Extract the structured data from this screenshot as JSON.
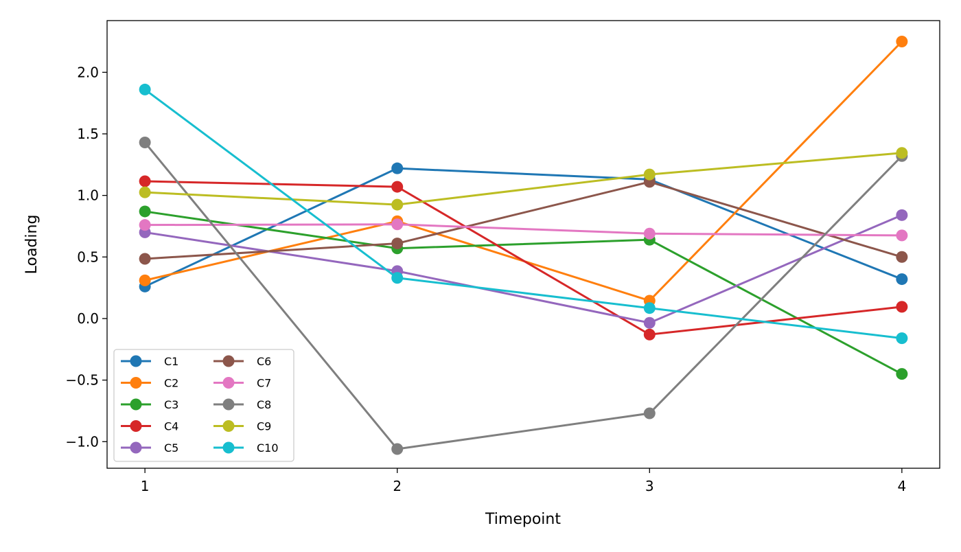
{
  "chart_data": {
    "type": "line",
    "title": "",
    "xlabel": "Timepoint",
    "ylabel": "Loading",
    "x": [
      1,
      2,
      3,
      4
    ],
    "xticks": [
      "1",
      "2",
      "3",
      "4"
    ],
    "yticks": [
      "−1.0",
      "−0.5",
      "0.0",
      "0.5",
      "1.0",
      "1.5",
      "2.0"
    ],
    "ytick_values": [
      -1.0,
      -0.5,
      0.0,
      0.5,
      1.0,
      1.5,
      2.0
    ],
    "xlim": [
      0.85,
      4.15
    ],
    "ylim": [
      -1.216,
      2.42
    ],
    "grid": false,
    "legend_placement": "lower-left",
    "series": [
      {
        "name": "C1",
        "color": "#1f77b4",
        "values": [
          0.26,
          1.22,
          1.13,
          0.32
        ]
      },
      {
        "name": "C2",
        "color": "#ff7f0e",
        "values": [
          0.31,
          0.79,
          0.145,
          2.25
        ]
      },
      {
        "name": "C3",
        "color": "#2ca02c",
        "values": [
          0.87,
          0.57,
          0.64,
          -0.45
        ]
      },
      {
        "name": "C4",
        "color": "#d62728",
        "values": [
          1.115,
          1.07,
          -0.13,
          0.095
        ]
      },
      {
        "name": "C5",
        "color": "#9467bd",
        "values": [
          0.7,
          0.385,
          -0.035,
          0.84
        ]
      },
      {
        "name": "C6",
        "color": "#8c564b",
        "values": [
          0.485,
          0.61,
          1.11,
          0.5
        ]
      },
      {
        "name": "C7",
        "color": "#e377c2",
        "values": [
          0.76,
          0.765,
          0.69,
          0.675
        ]
      },
      {
        "name": "C8",
        "color": "#7f7f7f",
        "values": [
          1.43,
          -1.06,
          -0.77,
          1.32
        ]
      },
      {
        "name": "C9",
        "color": "#bcbd22",
        "values": [
          1.025,
          0.925,
          1.17,
          1.345
        ]
      },
      {
        "name": "C10",
        "color": "#17becf",
        "values": [
          1.86,
          0.33,
          0.085,
          -0.16
        ]
      }
    ]
  }
}
